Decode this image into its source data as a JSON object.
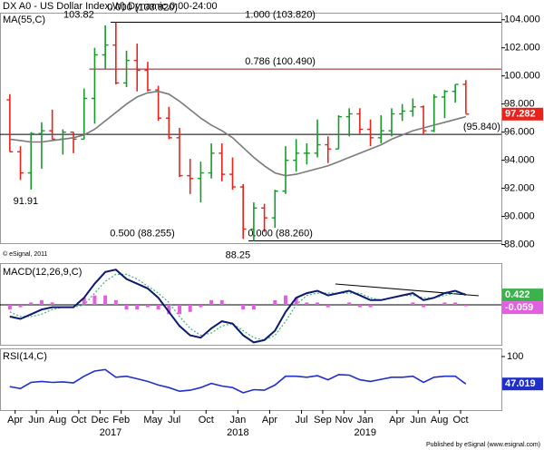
{
  "chart_data": {
    "type": "candlestick",
    "title": "DX A0 - US Dollar Index,W) Dynamic,0:00-24:00",
    "x": [
      "2016-03",
      "2016-04",
      "2016-05",
      "2016-06",
      "2016-07",
      "2016-08",
      "2016-09",
      "2016-10",
      "2016-11",
      "2016-12",
      "2017-01",
      "2017-02",
      "2017-03",
      "2017-04",
      "2017-05",
      "2017-06",
      "2017-07",
      "2017-08",
      "2017-09",
      "2017-10",
      "2017-11",
      "2017-12",
      "2018-01",
      "2018-02",
      "2018-03",
      "2018-04",
      "2018-05",
      "2018-06",
      "2018-07",
      "2018-08",
      "2018-09",
      "2018-10",
      "2018-11",
      "2018-12",
      "2019-01",
      "2019-02",
      "2019-03",
      "2019-04",
      "2019-05",
      "2019-06",
      "2019-07",
      "2019-08",
      "2019-09",
      "2019-10"
    ],
    "open": [
      98.3,
      94.6,
      93.1,
      95.9,
      96.1,
      95.5,
      96.0,
      95.5,
      98.4,
      101.5,
      102.2,
      99.5,
      101.1,
      100.4,
      99.0,
      97.0,
      95.6,
      92.9,
      92.7,
      93.1,
      94.5,
      93.0,
      92.1,
      89.1,
      90.6,
      89.9,
      91.8,
      94.0,
      94.5,
      94.5,
      95.1,
      94.8,
      97.1,
      97.3,
      96.2,
      95.6,
      96.1,
      97.3,
      97.5,
      97.8,
      96.1,
      98.5,
      98.9,
      99.4
    ],
    "high": [
      98.7,
      95.0,
      96.0,
      96.7,
      97.6,
      96.2,
      96.0,
      99.1,
      102.0,
      103.6,
      103.82,
      101.8,
      102.3,
      101.0,
      99.3,
      97.8,
      96.3,
      94.1,
      93.9,
      95.2,
      95.2,
      94.2,
      92.3,
      91.0,
      90.9,
      91.9,
      95.0,
      95.5,
      95.2,
      96.9,
      95.7,
      97.2,
      97.7,
      97.7,
      96.9,
      97.2,
      97.7,
      98.0,
      98.4,
      97.9,
      98.7,
      99.0,
      99.4,
      99.7
    ],
    "low": [
      94.6,
      92.6,
      91.91,
      93.4,
      95.5,
      94.4,
      94.5,
      95.5,
      96.6,
      100.5,
      99.4,
      99.2,
      98.9,
      98.9,
      96.8,
      95.5,
      92.8,
      91.6,
      91.0,
      92.7,
      92.5,
      91.9,
      88.4,
      88.25,
      88.9,
      89.2,
      91.6,
      93.2,
      93.7,
      94.2,
      93.8,
      94.8,
      95.7,
      95.9,
      95.0,
      95.2,
      95.7,
      96.8,
      97.1,
      95.8,
      96.0,
      97.0,
      98.1,
      97.3
    ],
    "close": [
      94.6,
      93.1,
      95.9,
      96.1,
      95.5,
      96.0,
      95.5,
      98.4,
      101.5,
      102.2,
      99.5,
      101.1,
      100.4,
      99.0,
      97.0,
      95.6,
      92.9,
      92.7,
      93.1,
      94.5,
      93.0,
      92.1,
      89.1,
      90.6,
      89.9,
      91.8,
      94.0,
      94.5,
      94.5,
      95.1,
      94.8,
      97.1,
      97.3,
      96.2,
      95.6,
      96.1,
      97.3,
      97.5,
      97.8,
      96.1,
      98.5,
      98.9,
      99.4,
      97.282
    ],
    "up_color": "#159a2b",
    "down_color": "#e8231c",
    "last_color": "#e8231c",
    "ma": {
      "name": "MA(55,C)",
      "color": "#7a7a7a",
      "values": [
        95.5,
        95.4,
        95.3,
        95.3,
        95.4,
        95.5,
        95.6,
        95.8,
        96.2,
        96.8,
        97.4,
        98.0,
        98.5,
        98.8,
        98.9,
        98.7,
        98.2,
        97.6,
        97.0,
        96.5,
        96.1,
        95.6,
        94.9,
        94.2,
        93.6,
        93.1,
        92.9,
        93.0,
        93.2,
        93.4,
        93.6,
        93.9,
        94.2,
        94.5,
        94.8,
        95.1,
        95.5,
        95.8,
        96.1,
        96.3,
        96.5,
        96.7,
        96.9,
        97.1
      ]
    },
    "xlim": [
      "2016-03",
      "2019-10"
    ],
    "ylim": [
      88.1,
      104.5
    ],
    "yticks": [
      {
        "value": 88,
        "label": "88.000"
      },
      {
        "value": 90,
        "label": "90.000"
      },
      {
        "value": 92,
        "label": "92.000"
      },
      {
        "value": 94,
        "label": "94.000"
      },
      {
        "value": 96,
        "label": "96.000"
      },
      {
        "value": 98,
        "label": "98.000"
      },
      {
        "value": 100,
        "label": "100.000"
      },
      {
        "value": 102,
        "label": "102.000"
      },
      {
        "value": 104,
        "label": "104.000"
      }
    ],
    "xticks": [
      {
        "value": "2016-04",
        "label": "Apr"
      },
      {
        "value": "2016-06",
        "label": "Jun"
      },
      {
        "value": "2016-08",
        "label": "Aug"
      },
      {
        "value": "2016-10",
        "label": "Oct"
      },
      {
        "value": "2016-12",
        "label": "Dec"
      },
      {
        "value": "2017-02",
        "label": "Feb"
      },
      {
        "value": "2017-05",
        "label": "May"
      },
      {
        "value": "2017-07",
        "label": "Jul"
      },
      {
        "value": "2017-10",
        "label": "Oct"
      },
      {
        "value": "2018-01",
        "label": "Jan"
      },
      {
        "value": "2018-04",
        "label": "Apr"
      },
      {
        "value": "2018-07",
        "label": "Jul"
      },
      {
        "value": "2018-09",
        "label": "Sep"
      },
      {
        "value": "2018-11",
        "label": "Nov"
      },
      {
        "value": "2019-01",
        "label": "Jan"
      },
      {
        "value": "2019-04",
        "label": "Apr"
      },
      {
        "value": "2019-06",
        "label": "Jun"
      },
      {
        "value": "2019-08",
        "label": "Aug"
      },
      {
        "value": "2019-10",
        "label": "Oct"
      }
    ],
    "year_ticks": [
      {
        "value": "2017-01",
        "label": "2017"
      },
      {
        "value": "2018-01",
        "label": "2018"
      },
      {
        "value": "2019-01",
        "label": "2019"
      }
    ],
    "levels": [
      {
        "value": 103.82,
        "start": "2017-01",
        "color": "#000000"
      },
      {
        "value": 100.49,
        "start": "2016-11",
        "color": "#8b1a1a"
      },
      {
        "value": 95.84,
        "color": "#000000"
      },
      {
        "value": 88.26,
        "start": "2018-02",
        "color": "#000000"
      }
    ],
    "annotations": [
      {
        "text": "103.82",
        "x": "2016-10",
        "value": 103.82,
        "pos": "above",
        "color": "#000000"
      },
      {
        "text": "0.000 (103.820)",
        "x": "2017-04",
        "value": 103.82,
        "pos": "far-above",
        "color": "#000000"
      },
      {
        "text": "1.000 (103.820)",
        "x": "2018-05",
        "value": 103.82,
        "pos": "above",
        "color": "#000000"
      },
      {
        "text": "0.786 (100.490)",
        "x": "2018-05",
        "value": 100.49,
        "pos": "above",
        "color": "#8b1a1a"
      },
      {
        "text": "(95.840)",
        "x": "2019-12",
        "value": 95.84,
        "pos": "above",
        "color": "#000000"
      },
      {
        "text": "0.500 (88.255)",
        "x": "2017-04",
        "value": 88.255,
        "pos": "above",
        "color": "#a020a0"
      },
      {
        "text": "0.000 (88.260)",
        "x": "2018-05",
        "value": 88.26,
        "pos": "above",
        "color": "#000000"
      },
      {
        "text": "91.91",
        "x": "2016-05",
        "value": 91.91,
        "pos": "below",
        "color": "#000000"
      },
      {
        "text": "88.25",
        "x": "2018-01",
        "value": 88.25,
        "pos": "far-below",
        "color": "#000000"
      }
    ],
    "indicators": [
      {
        "type": "macd",
        "title": "MACD(12,26,9,C)",
        "ylim": [
          -1.7,
          1.7
        ],
        "macd": {
          "color": "#0a1a6e",
          "values": [
            -0.5,
            -0.6,
            -0.4,
            -0.2,
            -0.1,
            -0.1,
            -0.1,
            0.3,
            0.9,
            1.4,
            1.5,
            1.1,
            0.9,
            0.7,
            0.3,
            -0.3,
            -0.9,
            -1.3,
            -1.4,
            -1.0,
            -0.7,
            -0.8,
            -1.3,
            -1.6,
            -1.5,
            -1.1,
            -0.3,
            0.3,
            0.5,
            0.6,
            0.4,
            0.5,
            0.6,
            0.4,
            0.2,
            0.2,
            0.3,
            0.4,
            0.5,
            0.2,
            0.3,
            0.5,
            0.6,
            0.422
          ]
        },
        "signal": {
          "color": "#3cb371",
          "values": [
            -0.3,
            -0.5,
            -0.5,
            -0.4,
            -0.2,
            -0.1,
            -0.1,
            0.0,
            0.5,
            1.0,
            1.3,
            1.3,
            1.1,
            0.8,
            0.5,
            0.1,
            -0.5,
            -1.0,
            -1.3,
            -1.2,
            -0.9,
            -0.8,
            -1.1,
            -1.4,
            -1.5,
            -1.3,
            -0.7,
            0.0,
            0.4,
            0.5,
            0.5,
            0.5,
            0.5,
            0.5,
            0.3,
            0.2,
            0.3,
            0.4,
            0.4,
            0.3,
            0.3,
            0.4,
            0.5,
            0.481
          ]
        },
        "histogram": {
          "color": "#e060e0",
          "values": [
            -0.2,
            -0.1,
            0.1,
            0.2,
            0.1,
            0,
            0,
            0.3,
            0.4,
            0.4,
            0.2,
            -0.2,
            -0.2,
            -0.1,
            -0.2,
            -0.4,
            -0.4,
            -0.3,
            -0.1,
            0.2,
            0.2,
            0,
            -0.2,
            -0.2,
            0,
            0.2,
            0.4,
            0.3,
            0.1,
            0.1,
            -0.1,
            0,
            0.1,
            -0.1,
            -0.1,
            0,
            0,
            0,
            0.1,
            -0.1,
            0,
            0.1,
            0.1,
            -0.059
          ]
        },
        "macd_box_color": "#3cb34a"
      },
      {
        "type": "line",
        "title": "RSI(14,C)",
        "ylim": [
          0,
          100
        ],
        "yticks": [
          100
        ],
        "color": "#1f2fc8",
        "values": [
          42,
          38,
          50,
          52,
          50,
          51,
          49,
          62,
          72,
          75,
          60,
          62,
          57,
          52,
          45,
          40,
          33,
          35,
          40,
          48,
          43,
          40,
          30,
          36,
          35,
          45,
          62,
          62,
          60,
          63,
          55,
          65,
          64,
          55,
          52,
          56,
          60,
          60,
          62,
          50,
          60,
          62,
          62,
          47.019
        ]
      }
    ],
    "source": "© eSignal, 2011",
    "footer": "Published by eSignal (www.esignal.com)"
  }
}
